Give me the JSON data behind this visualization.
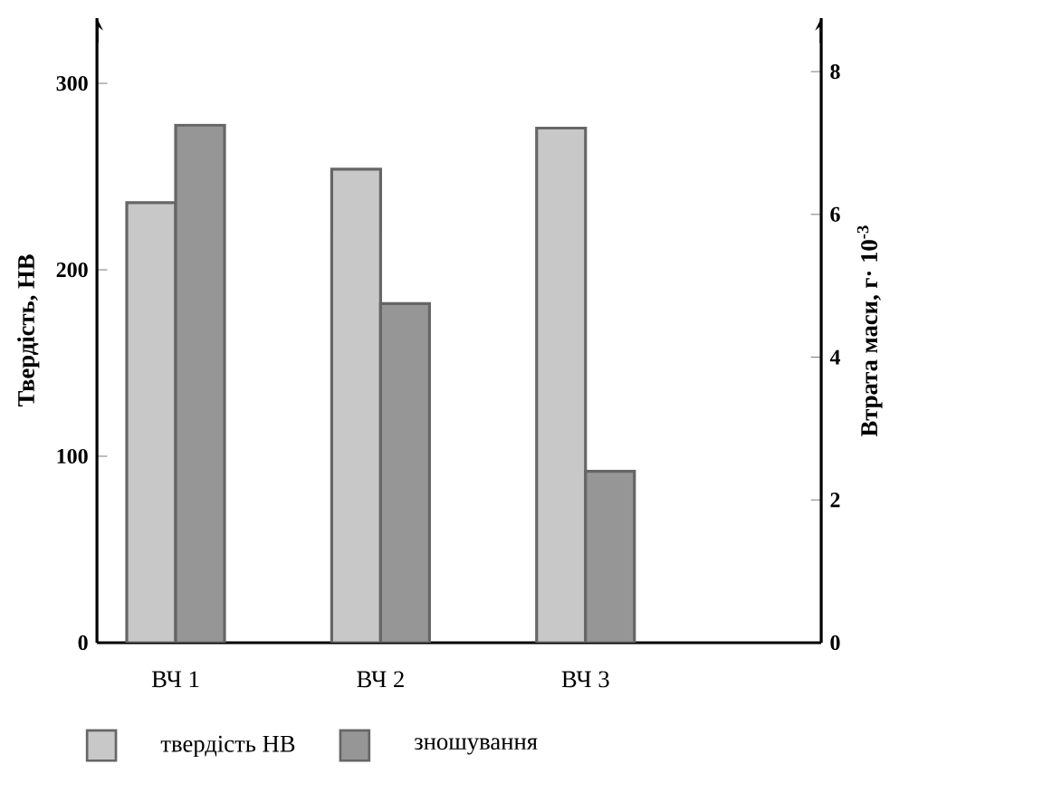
{
  "chart_data": {
    "type": "bar",
    "categories": [
      "ВЧ 1",
      "ВЧ 2",
      "ВЧ 3"
    ],
    "ylabel": "Твердість, НВ",
    "y2label": "Втрата  маси, г· 10$^{-3}$",
    "ylim": [
      0,
      335
    ],
    "yticks": [
      0,
      100,
      200,
      300
    ],
    "y2lim": [
      0,
      8.75
    ],
    "y2ticks": [
      0,
      2,
      4,
      6,
      8
    ],
    "legend": "bottom",
    "series": [
      {
        "name": "твердість НВ",
        "color": "#c8c8c8",
        "values": [
          236,
          254,
          276
        ]
      },
      {
        "name": "зношування",
        "color": "#969696",
        "axis": "y2",
        "values": [
          7.25,
          4.75,
          2.4
        ]
      }
    ]
  }
}
